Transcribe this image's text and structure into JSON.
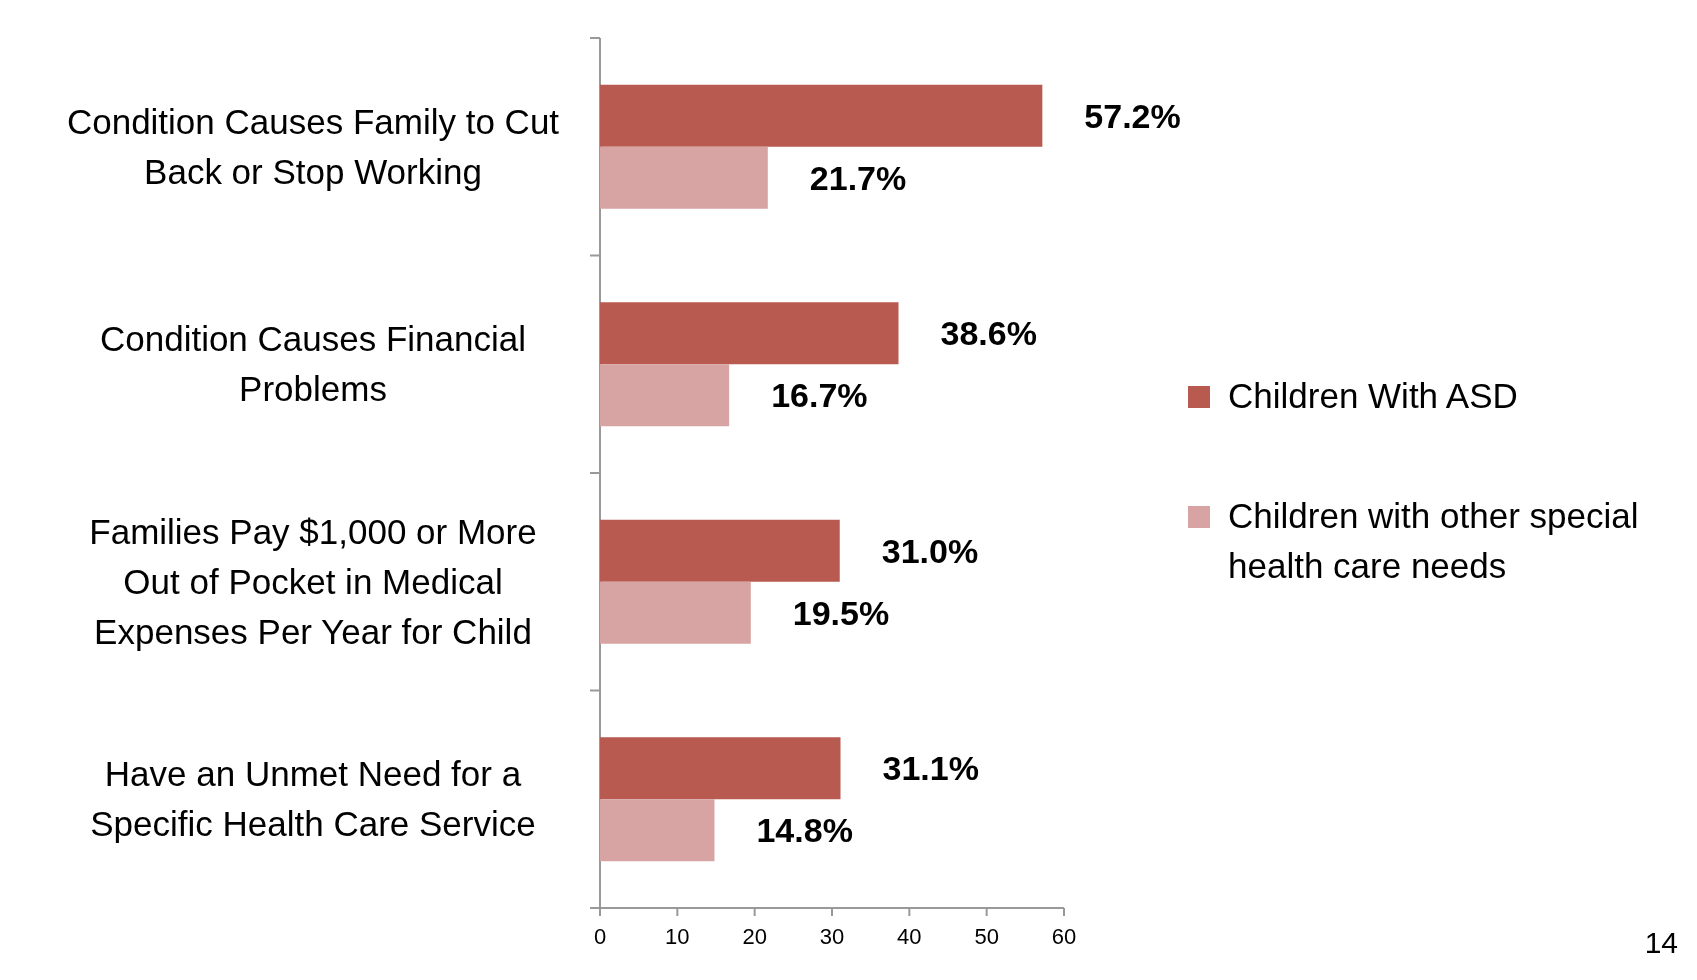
{
  "chart_data": {
    "type": "bar",
    "orientation": "horizontal",
    "categories": [
      "Condition Causes Family to Cut Back or Stop Working",
      "Condition Causes Financial Problems",
      "Families Pay $1,000 or More Out of Pocket in Medical Expenses Per Year for Child",
      "Have an Unmet Need for a Specific Health Care Service"
    ],
    "series": [
      {
        "name": "Children With ASD",
        "color": "#b85a50",
        "values": [
          57.2,
          38.6,
          31.0,
          31.1
        ],
        "value_labels": [
          "57.2%",
          "38.6%",
          "31.0%",
          "31.1%"
        ]
      },
      {
        "name": "Children with other special health care needs",
        "color": "#d8a3a3",
        "values": [
          21.7,
          16.7,
          19.5,
          14.8
        ],
        "value_labels": [
          "21.7%",
          "16.7%",
          "19.5%",
          "14.8%"
        ]
      }
    ],
    "xlim": [
      0,
      60
    ],
    "xticks": [
      0,
      10,
      20,
      30,
      40,
      50,
      60
    ],
    "legend": "right",
    "grid": false,
    "annotations": [
      "14"
    ]
  }
}
